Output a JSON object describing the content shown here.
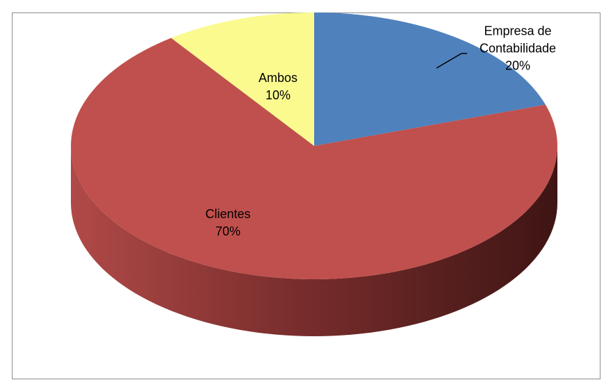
{
  "chart_data": {
    "type": "pie",
    "categories": [
      "Empresa de Contabilidade",
      "Clientes",
      "Ambos"
    ],
    "values": [
      20,
      70,
      10
    ],
    "value_labels": [
      "20%",
      "70%",
      "10%"
    ],
    "colors": [
      "#4f81bd",
      "#c0504d",
      "#fafa8f"
    ]
  }
}
